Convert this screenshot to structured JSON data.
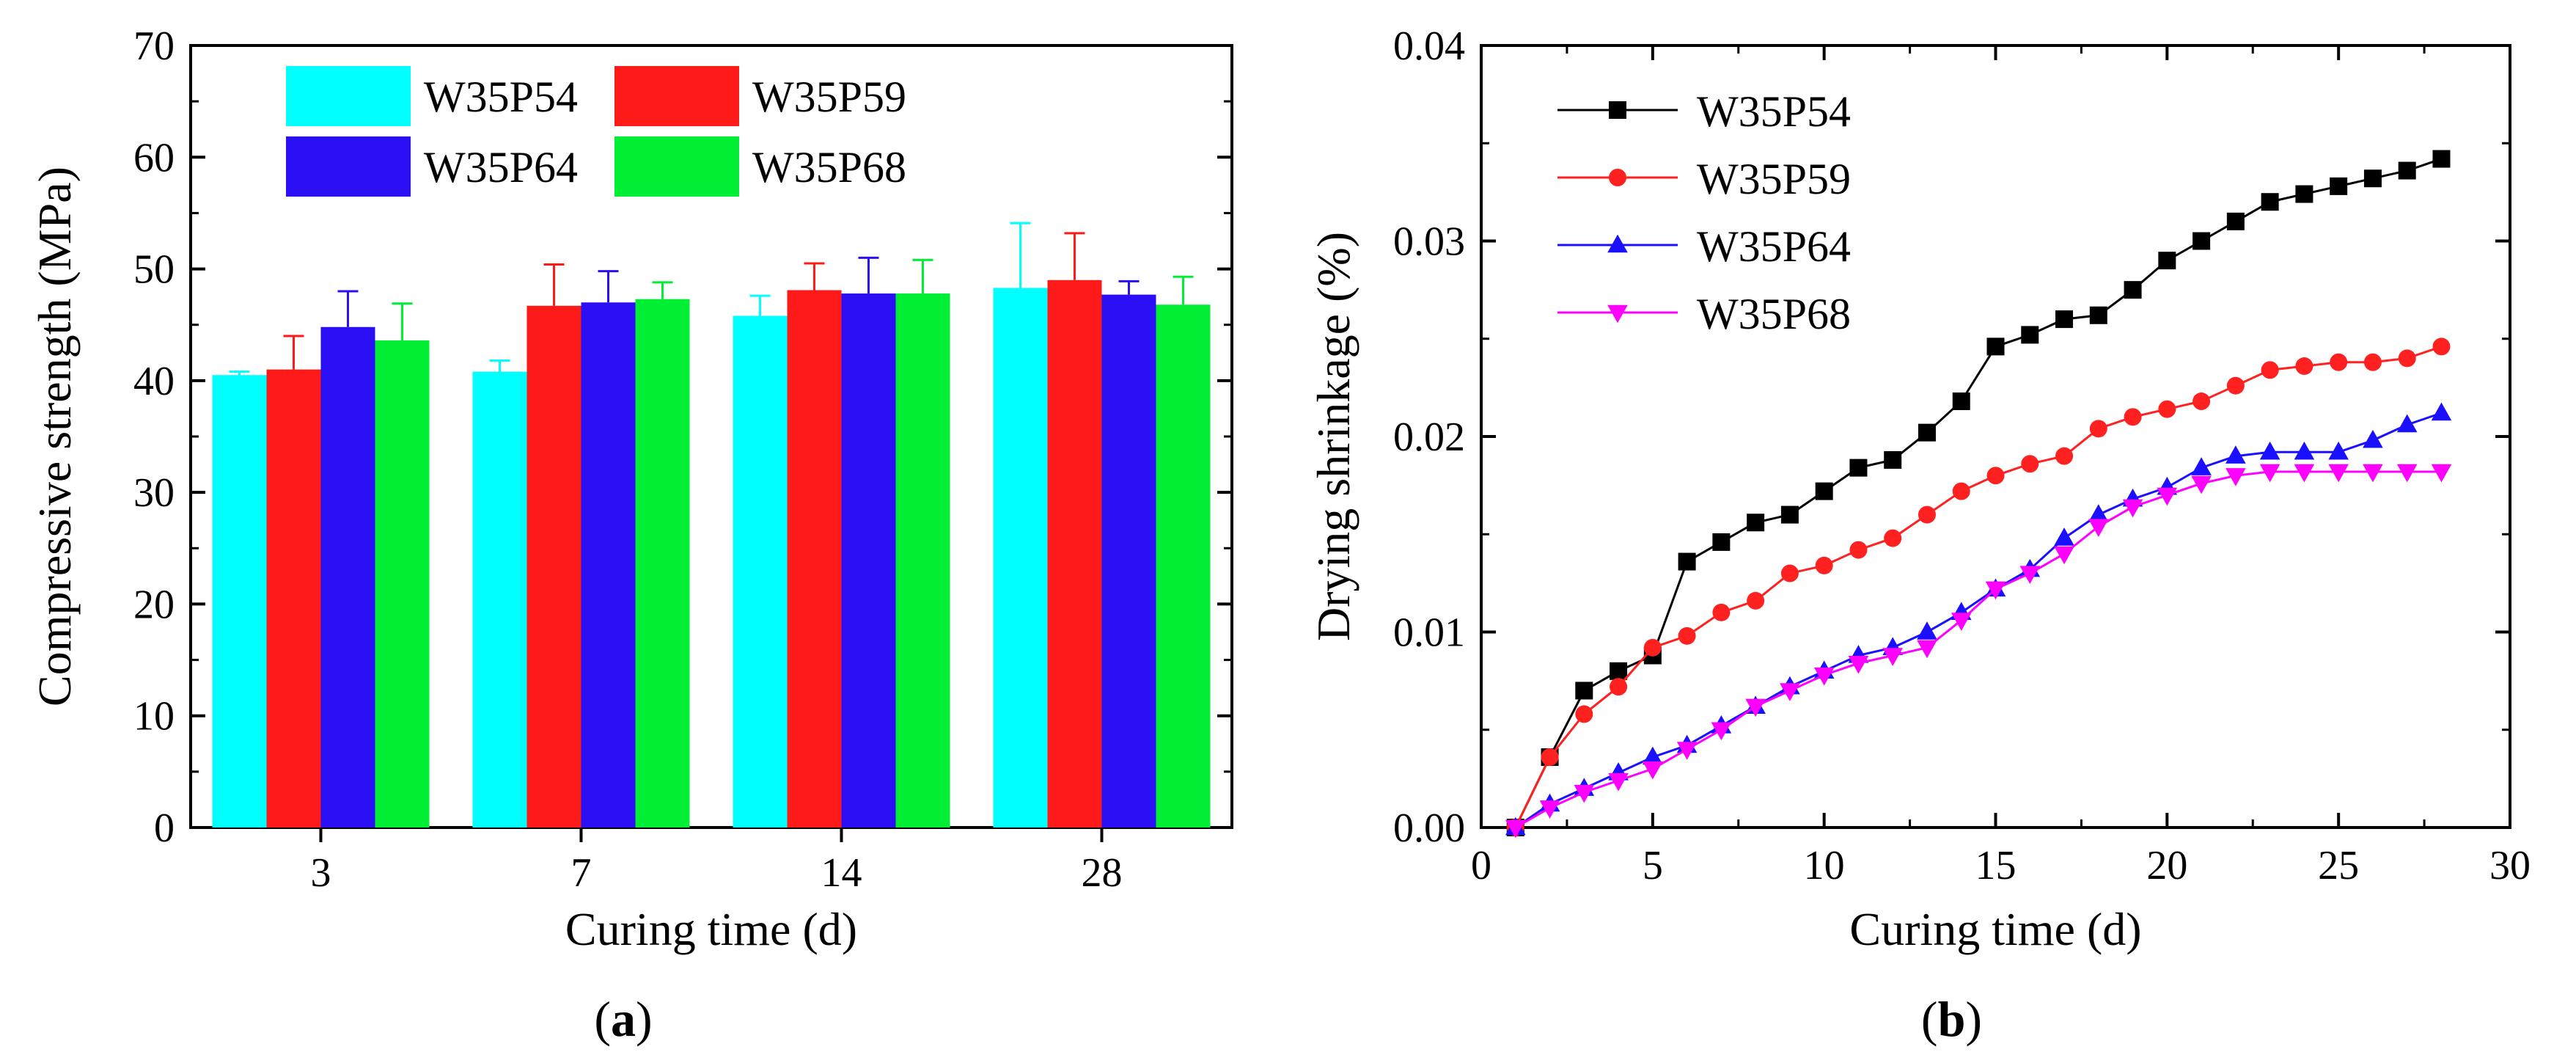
{
  "chart_data": [
    {
      "type": "bar",
      "panel_label": "(a)",
      "title": "",
      "xlabel": "Curing time (d)",
      "ylabel": "Compressive strength (MPa)",
      "ylim": [
        0,
        70
      ],
      "yticks": [
        0,
        10,
        20,
        30,
        40,
        50,
        60,
        70
      ],
      "categories": [
        "3",
        "7",
        "14",
        "28"
      ],
      "legend_position": "top",
      "series": [
        {
          "name": "W35P54",
          "color": "#00ffff",
          "values": [
            40.5,
            40.8,
            45.8,
            48.3
          ],
          "errors": [
            0.3,
            1.0,
            1.8,
            5.8
          ]
        },
        {
          "name": "W35P59",
          "color": "#ff1a1a",
          "values": [
            41.0,
            46.7,
            48.1,
            49.0
          ],
          "errors": [
            3.0,
            3.7,
            2.4,
            4.2
          ]
        },
        {
          "name": "W35P64",
          "color": "#2a0ff5",
          "values": [
            44.8,
            47.0,
            47.8,
            47.7
          ],
          "errors": [
            3.2,
            2.8,
            3.2,
            1.2
          ]
        },
        {
          "name": "W35P68",
          "color": "#00ee33",
          "values": [
            43.6,
            47.3,
            47.8,
            46.8
          ],
          "errors": [
            3.3,
            1.5,
            3.0,
            2.5
          ]
        }
      ]
    },
    {
      "type": "line",
      "panel_label": "(b)",
      "title": "",
      "xlabel": "Curing time (d)",
      "ylabel": "Drying shrinkage (%)",
      "xlim": [
        0,
        30
      ],
      "ylim": [
        0,
        0.04
      ],
      "xticks": [
        0,
        5,
        10,
        15,
        20,
        25,
        30
      ],
      "yticks": [
        "0.00",
        "0.01",
        "0.02",
        "0.03",
        "0.04"
      ],
      "legend_position": "top-left",
      "x": [
        1,
        2,
        3,
        4,
        5,
        6,
        7,
        8,
        9,
        10,
        11,
        12,
        13,
        14,
        15,
        16,
        17,
        18,
        19,
        20,
        21,
        22,
        23,
        24,
        25,
        26,
        27,
        28
      ],
      "series": [
        {
          "name": "W35P54",
          "color": "#000000",
          "marker": "square",
          "values": [
            0.0,
            0.0036,
            0.007,
            0.008,
            0.0088,
            0.0136,
            0.0146,
            0.0156,
            0.016,
            0.0172,
            0.0184,
            0.0188,
            0.0202,
            0.0218,
            0.0246,
            0.0252,
            0.026,
            0.0262,
            0.0275,
            0.029,
            0.03,
            0.031,
            0.032,
            0.0324,
            0.0328,
            0.0332,
            0.0336,
            0.0342
          ]
        },
        {
          "name": "W35P59",
          "color": "#ff2020",
          "marker": "circle",
          "values": [
            0.0,
            0.0036,
            0.0058,
            0.0072,
            0.0092,
            0.0098,
            0.011,
            0.0116,
            0.013,
            0.0134,
            0.0142,
            0.0148,
            0.016,
            0.0172,
            0.018,
            0.0186,
            0.019,
            0.0204,
            0.021,
            0.0214,
            0.0218,
            0.0226,
            0.0234,
            0.0236,
            0.0238,
            0.0238,
            0.024,
            0.0246
          ]
        },
        {
          "name": "W35P64",
          "color": "#1a10ff",
          "marker": "triangle-up",
          "values": [
            0.0,
            0.0012,
            0.002,
            0.0028,
            0.0036,
            0.0042,
            0.0052,
            0.0062,
            0.0072,
            0.008,
            0.0088,
            0.0092,
            0.01,
            0.011,
            0.0122,
            0.0132,
            0.0148,
            0.016,
            0.0168,
            0.0174,
            0.0184,
            0.019,
            0.0192,
            0.0192,
            0.0192,
            0.0198,
            0.0206,
            0.0212
          ]
        },
        {
          "name": "W35P68",
          "color": "#ff00ff",
          "marker": "triangle-down",
          "values": [
            0.0,
            0.001,
            0.0018,
            0.0024,
            0.003,
            0.004,
            0.005,
            0.0062,
            0.007,
            0.0078,
            0.0084,
            0.0088,
            0.0092,
            0.0106,
            0.0122,
            0.013,
            0.014,
            0.0154,
            0.0164,
            0.017,
            0.0176,
            0.018,
            0.0182,
            0.0182,
            0.0182,
            0.0182,
            0.0182,
            0.0182
          ]
        }
      ]
    }
  ]
}
